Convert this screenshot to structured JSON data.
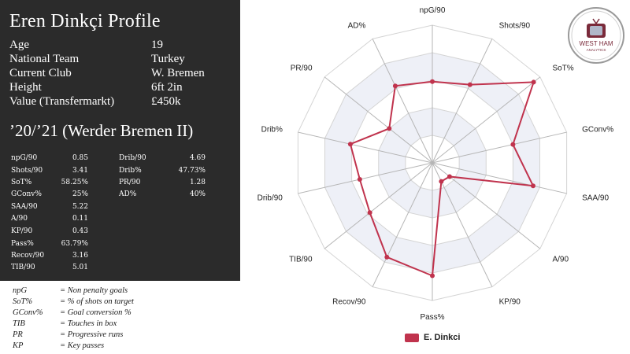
{
  "profile": {
    "title": "Eren Dinkçi Profile",
    "info": [
      {
        "label": "Age",
        "value": "19"
      },
      {
        "label": "National Team",
        "value": "Turkey"
      },
      {
        "label": "Current Club",
        "value": "W. Bremen"
      },
      {
        "label": "Height",
        "value": "6ft 2in"
      },
      {
        "label": "Value (Transfermarkt)",
        "value": "£450k"
      }
    ],
    "season": "’20/’21 (Werder Bremen II)",
    "stats_left": [
      {
        "label": "npG/90",
        "value": "0.85"
      },
      {
        "label": "Shots/90",
        "value": "3.41"
      },
      {
        "label": "SoT%",
        "value": "58.25%"
      },
      {
        "label": "GConv%",
        "value": "25%"
      },
      {
        "label": "SAA/90",
        "value": "5.22"
      },
      {
        "label": "A/90",
        "value": "0.11"
      },
      {
        "label": "KP/90",
        "value": "0.43"
      },
      {
        "label": "Pass%",
        "value": "63.79%"
      },
      {
        "label": "Recov/90",
        "value": "3.16"
      },
      {
        "label": "TIB/90",
        "value": "5.01"
      }
    ],
    "stats_right": [
      {
        "label": "Drib/90",
        "value": "4.69"
      },
      {
        "label": "Drib%",
        "value": "47.73%"
      },
      {
        "label": "PR/90",
        "value": "1.28"
      },
      {
        "label": "AD%",
        "value": "40%"
      }
    ]
  },
  "glossary": [
    {
      "term": "npG",
      "definition": "= Non  penalty goals"
    },
    {
      "term": "SoT%",
      "definition": "= % of shots on target"
    },
    {
      "term": "GConv%",
      "definition": "= Goal conversion %"
    },
    {
      "term": "TIB",
      "definition": "= Touches in box"
    },
    {
      "term": "PR",
      "definition": "= Progressive runs"
    },
    {
      "term": "KP",
      "definition": "= Key passes"
    }
  ],
  "logo": {
    "text": "WEST HAM",
    "sub": "ANALYTICS",
    "accent": "#7a2a3a"
  },
  "chart_data": {
    "type": "radar",
    "axes": [
      "npG/90",
      "Shots/90",
      "SoT%",
      "GConv%",
      "SAA/90",
      "A/90",
      "KP/90",
      "Pass%",
      "Recov/90",
      "TIB/90",
      "Drib/90",
      "Drib%",
      "PR/90",
      "AD%"
    ],
    "rlim": [
      0,
      1
    ],
    "rings": 5,
    "series": [
      {
        "name": "E. Dinkci",
        "color": "#c0334d",
        "values": [
          0.59,
          0.63,
          0.94,
          0.6,
          0.75,
          0.16,
          0.15,
          0.82,
          0.76,
          0.58,
          0.54,
          0.61,
          0.4,
          0.62
        ]
      }
    ],
    "legend": "bottom-center",
    "grid": true
  }
}
